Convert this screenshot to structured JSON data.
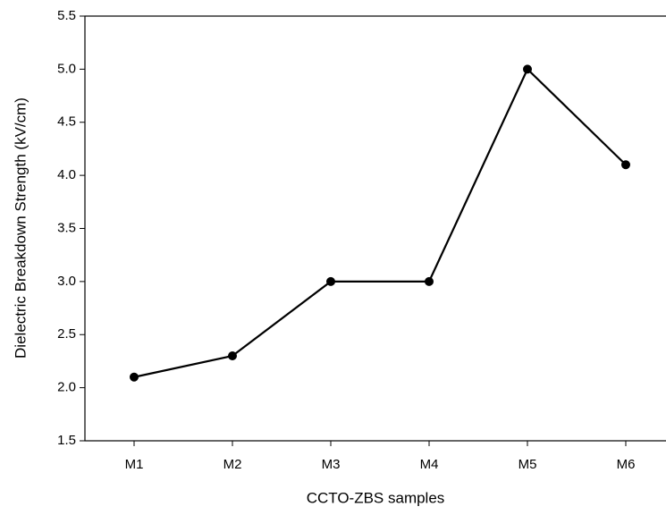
{
  "chart_data": {
    "type": "line",
    "x_label": "CCTO-ZBS samples",
    "y_label": "Dielectric Breakdown Strength (kV/cm)",
    "categories": [
      "M1",
      "M2",
      "M3",
      "M4",
      "M5",
      "M6"
    ],
    "values": [
      2.1,
      2.3,
      3.0,
      3.0,
      5.0,
      4.1
    ],
    "color": "#000000",
    "ylim": [
      1.5,
      5.5
    ],
    "yticks": [
      1.5,
      {
        "value": 2,
        "label": "2.0"
      },
      2.5,
      {
        "value": 3,
        "label": "3.0"
      },
      3.5,
      {
        "value": 4,
        "label": "4.0"
      },
      4.5,
      {
        "value": 5,
        "label": "5.0"
      },
      5.5
    ]
  }
}
